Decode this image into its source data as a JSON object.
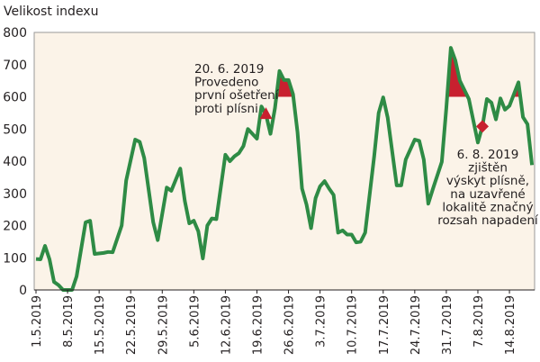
{
  "chart_data": {
    "type": "line",
    "title": "",
    "ylabel": "Velikost indexu",
    "xlabel": "",
    "ylim": [
      0,
      800
    ],
    "yticks": [
      0,
      100,
      200,
      300,
      400,
      500,
      600,
      700,
      800
    ],
    "xticks": [
      "1.5.2019",
      "8.5.2019",
      "15.5.2019",
      "22.5.2019",
      "29.5.2019",
      "5.6.2019",
      "12.6.2019",
      "19.6.2019",
      "26.6.2019",
      "3.7.2019",
      "10.7.2019",
      "17.7.2019",
      "24.7.2019",
      "31.7.2019",
      "7.8.2019",
      "14.8.2019"
    ],
    "grid": false,
    "threshold": 600,
    "colors": {
      "line": "#2e8b45",
      "fill": "#c8202f",
      "background": "#fbf3e8",
      "axis": "#999999"
    },
    "series": [
      {
        "points": [
          [
            "1.5.2019",
            96
          ],
          [
            "2.5.2019",
            95
          ],
          [
            "3.5.2019",
            137
          ],
          [
            "4.5.2019",
            95
          ],
          [
            "5.5.2019",
            25
          ],
          [
            "6.5.2019",
            15
          ],
          [
            "7.5.2019",
            0
          ],
          [
            "9.5.2019",
            0
          ],
          [
            "10.5.2019",
            42
          ],
          [
            "12.5.2019",
            210
          ],
          [
            "13.5.2019",
            215
          ],
          [
            "14.5.2019",
            112
          ],
          [
            "16.5.2019",
            115
          ],
          [
            "17.5.2019",
            118
          ],
          [
            "18.5.2019",
            117
          ],
          [
            "20.5.2019",
            200
          ],
          [
            "21.5.2019",
            340
          ],
          [
            "23.5.2019",
            467
          ],
          [
            "24.5.2019",
            460
          ],
          [
            "25.5.2019",
            410
          ],
          [
            "27.5.2019",
            210
          ],
          [
            "28.5.2019",
            155
          ],
          [
            "30.5.2019",
            318
          ],
          [
            "31.5.2019",
            308
          ],
          [
            "2.6.2019",
            377
          ],
          [
            "3.6.2019",
            277
          ],
          [
            "4.6.2019",
            207
          ],
          [
            "5.6.2019",
            215
          ],
          [
            "6.6.2019",
            182
          ],
          [
            "7.6.2019",
            98
          ],
          [
            "8.6.2019",
            200
          ],
          [
            "9.6.2019",
            222
          ],
          [
            "10.6.2019",
            220
          ],
          [
            "12.6.2019",
            420
          ],
          [
            "13.6.2019",
            400
          ],
          [
            "14.6.2019",
            415
          ],
          [
            "15.6.2019",
            425
          ],
          [
            "16.6.2019",
            447
          ],
          [
            "17.6.2019",
            500
          ],
          [
            "19.6.2019",
            470
          ],
          [
            "20.6.2019",
            570
          ],
          [
            "21.6.2019",
            545
          ],
          [
            "22.6.2019",
            485
          ],
          [
            "23.6.2019",
            565
          ],
          [
            "24.6.2019",
            680
          ],
          [
            "25.6.2019",
            652
          ],
          [
            "26.6.2019",
            652
          ],
          [
            "27.6.2019",
            608
          ],
          [
            "28.6.2019",
            490
          ],
          [
            "29.6.2019",
            315
          ],
          [
            "30.6.2019",
            265
          ],
          [
            "1.7.2019",
            192
          ],
          [
            "2.7.2019",
            285
          ],
          [
            "3.7.2019",
            322
          ],
          [
            "4.7.2019",
            338
          ],
          [
            "5.7.2019",
            315
          ],
          [
            "6.7.2019",
            295
          ],
          [
            "7.7.2019",
            178
          ],
          [
            "8.7.2019",
            185
          ],
          [
            "9.7.2019",
            172
          ],
          [
            "10.7.2019",
            172
          ],
          [
            "11.7.2019",
            148
          ],
          [
            "12.7.2019",
            150
          ],
          [
            "13.7.2019",
            178
          ],
          [
            "15.7.2019",
            415
          ],
          [
            "16.7.2019",
            550
          ],
          [
            "17.7.2019",
            598
          ],
          [
            "18.7.2019",
            535
          ],
          [
            "20.7.2019",
            325
          ],
          [
            "21.7.2019",
            325
          ],
          [
            "22.7.2019",
            405
          ],
          [
            "24.7.2019",
            467
          ],
          [
            "25.7.2019",
            463
          ],
          [
            "26.7.2019",
            405
          ],
          [
            "27.7.2019",
            268
          ],
          [
            "28.7.2019",
            313
          ],
          [
            "30.7.2019",
            398
          ],
          [
            "31.7.2019",
            565
          ],
          [
            "1.8.2019",
            752
          ],
          [
            "2.8.2019",
            713
          ],
          [
            "3.8.2019",
            650
          ],
          [
            "5.8.2019",
            593
          ],
          [
            "7.8.2019",
            458
          ],
          [
            "8.8.2019",
            508
          ],
          [
            "9.8.2019",
            593
          ],
          [
            "10.8.2019",
            582
          ],
          [
            "11.8.2019",
            530
          ],
          [
            "12.8.2019",
            595
          ],
          [
            "13.8.2019",
            560
          ],
          [
            "14.8.2019",
            572
          ],
          [
            "16.8.2019",
            645
          ],
          [
            "17.8.2019",
            537
          ],
          [
            "18.8.2019",
            515
          ],
          [
            "19.8.2019",
            388
          ]
        ]
      }
    ],
    "markers": [
      {
        "shape": "triangle",
        "point": [
          "21.6.2019",
          545
        ]
      },
      {
        "shape": "diamond",
        "point": [
          "8.8.2019",
          508
        ]
      }
    ],
    "annotations": [
      {
        "lines": [
          "20. 6. 2019",
          "Provedeno",
          "první ošetření",
          "proti plísni"
        ]
      },
      {
        "lines": [
          "6. 8. 2019",
          "zjištěn",
          "výskyt plísně,",
          "na uzavřené",
          "lokalitě značný",
          "rozsah napadení"
        ]
      }
    ]
  }
}
